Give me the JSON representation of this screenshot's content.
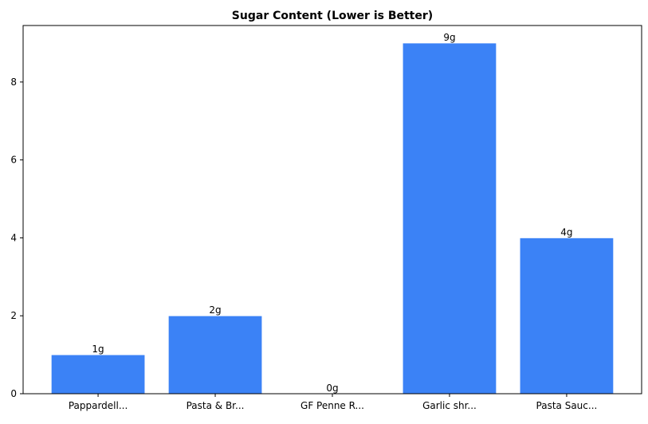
{
  "chart_data": {
    "type": "bar",
    "title": "Sugar Content (Lower is Better)",
    "xlabel": "",
    "ylabel": "",
    "categories": [
      "Pappardell...",
      "Pasta & Br...",
      "GF Penne R...",
      "Garlic shr...",
      "Pasta Sauc..."
    ],
    "values": [
      1,
      2,
      0,
      9,
      4
    ],
    "data_labels": [
      "1g",
      "2g",
      "0g",
      "9g",
      "4g"
    ],
    "ylim": [
      0,
      9.45
    ],
    "yticks": [
      0,
      2,
      4,
      6,
      8
    ],
    "ytick_labels": [
      "0",
      "2",
      "4",
      "6",
      "8"
    ],
    "grid": false,
    "bar_color": "#3b82f6"
  }
}
